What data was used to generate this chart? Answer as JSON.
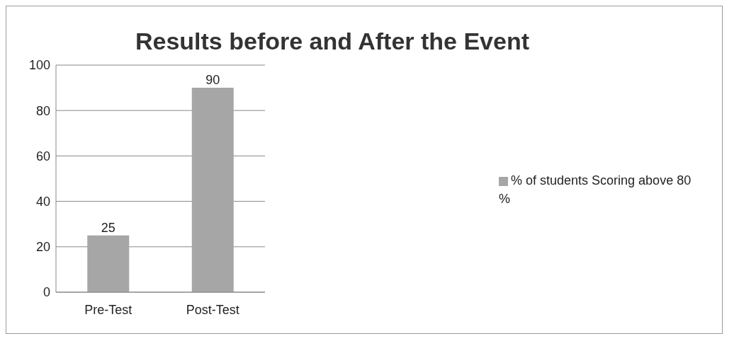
{
  "chart_data": {
    "type": "bar",
    "title": "Results before and After the Event",
    "categories": [
      "Pre-Test",
      "Post-Test"
    ],
    "series": [
      {
        "name": "% of students Scoring above 80 %",
        "color": "#a6a6a6",
        "values": [
          25,
          90
        ]
      }
    ],
    "ylim": [
      0,
      100
    ],
    "yticks": [
      0,
      20,
      40,
      60,
      80,
      100
    ],
    "grid": "y",
    "legend": "right",
    "data_labels": true
  }
}
